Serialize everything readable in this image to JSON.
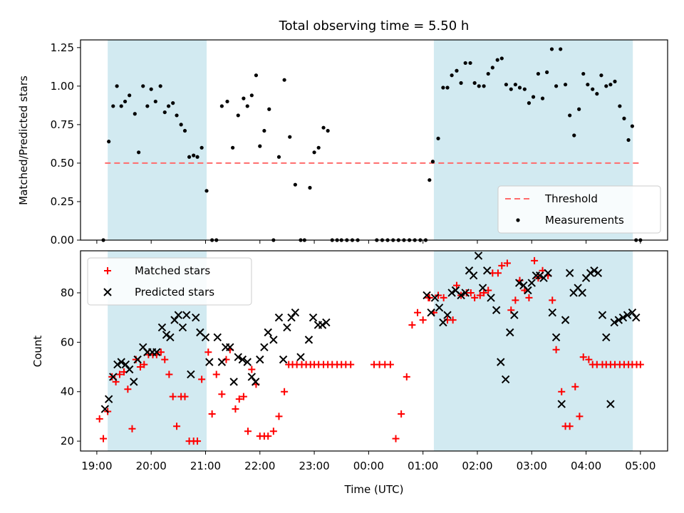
{
  "chart_data": {
    "title": "Total observing time = 5.50 h",
    "xlabel": "Time (UTC)",
    "xlim_hours": [
      -0.3,
      10.5
    ],
    "x_ticks": [
      {
        "v": 0,
        "label": "19:00"
      },
      {
        "v": 1,
        "label": "20:00"
      },
      {
        "v": 2,
        "label": "21:00"
      },
      {
        "v": 3,
        "label": "22:00"
      },
      {
        "v": 4,
        "label": "23:00"
      },
      {
        "v": 5,
        "label": "00:00"
      },
      {
        "v": 6,
        "label": "01:00"
      },
      {
        "v": 7,
        "label": "02:00"
      },
      {
        "v": 8,
        "label": "03:00"
      },
      {
        "v": 9,
        "label": "04:00"
      },
      {
        "v": 10,
        "label": "05:00"
      }
    ],
    "shaded_intervals": [
      [
        0.2,
        2.02
      ],
      [
        6.2,
        9.86
      ]
    ],
    "shade_color": "#add8e6",
    "panels": [
      {
        "type": "scatter",
        "ylabel": "Matched/Predicted stars",
        "ylim": [
          0,
          1.3
        ],
        "yticks": [
          "0.00",
          "0.25",
          "0.50",
          "0.75",
          "1.00",
          "1.25"
        ],
        "threshold": 0.5,
        "legend_placement": "lower-right",
        "series": [
          {
            "name": "Threshold",
            "kind": "line",
            "color": "#ff6b6b",
            "style": "dashed",
            "x": [
              0.15,
              10.0
            ],
            "y": [
              0.5,
              0.5
            ]
          },
          {
            "name": "Measurements",
            "kind": "dot",
            "color": "#000000",
            "x": [
              0.12,
              0.22,
              0.3,
              0.37,
              0.45,
              0.52,
              0.6,
              0.7,
              0.77,
              0.85,
              0.93,
              1.0,
              1.08,
              1.17,
              1.25,
              1.32,
              1.4,
              1.47,
              1.55,
              1.62,
              1.7,
              1.78,
              1.85,
              1.93,
              2.02,
              2.12,
              2.2,
              2.3,
              2.4,
              2.5,
              2.6,
              2.7,
              2.77,
              2.85,
              2.93,
              3.0,
              3.08,
              3.17,
              3.25,
              3.35,
              3.45,
              3.55,
              3.65,
              3.75,
              3.82,
              3.92,
              4.0,
              4.08,
              4.17,
              4.25,
              4.33,
              4.42,
              4.5,
              4.6,
              4.7,
              4.8,
              5.15,
              5.25,
              5.35,
              5.45,
              5.55,
              5.65,
              5.75,
              5.85,
              5.95,
              6.05,
              6.12,
              6.18,
              6.28,
              6.37,
              6.45,
              6.53,
              6.62,
              6.7,
              6.78,
              6.87,
              6.95,
              7.03,
              7.12,
              7.2,
              7.28,
              7.37,
              7.45,
              7.53,
              7.62,
              7.7,
              7.78,
              7.87,
              7.95,
              8.03,
              8.12,
              8.2,
              8.28,
              8.37,
              8.45,
              8.53,
              8.62,
              8.7,
              8.78,
              8.87,
              8.95,
              9.03,
              9.12,
              9.2,
              9.28,
              9.37,
              9.45,
              9.53,
              9.62,
              9.7,
              9.78,
              9.85,
              9.92,
              10.0
            ],
            "y": [
              0.0,
              0.64,
              0.87,
              1.0,
              0.87,
              0.9,
              0.94,
              0.82,
              0.57,
              1.0,
              0.87,
              0.98,
              0.9,
              1.0,
              0.83,
              0.87,
              0.89,
              0.81,
              0.75,
              0.71,
              0.54,
              0.55,
              0.54,
              0.6,
              0.32,
              0.0,
              0.0,
              0.87,
              0.9,
              0.6,
              0.81,
              0.92,
              0.87,
              0.94,
              1.07,
              0.61,
              0.71,
              0.85,
              0.0,
              0.54,
              1.04,
              0.67,
              0.36,
              0.0,
              0.0,
              0.34,
              0.57,
              0.6,
              0.73,
              0.71,
              0.0,
              0.0,
              0.0,
              0.0,
              0.0,
              0.0,
              0.0,
              0.0,
              0.0,
              0.0,
              0.0,
              0.0,
              0.0,
              0.0,
              0.0,
              0.0,
              0.39,
              0.51,
              0.66,
              0.99,
              0.99,
              1.07,
              1.1,
              1.02,
              1.15,
              1.15,
              1.02,
              1.0,
              1.0,
              1.08,
              1.12,
              1.17,
              1.18,
              1.01,
              0.98,
              1.01,
              0.99,
              0.98,
              0.89,
              0.93,
              1.08,
              0.92,
              1.09,
              1.24,
              1.0,
              1.24,
              1.01,
              0.81,
              0.68,
              0.85,
              1.08,
              1.01,
              0.98,
              0.95,
              1.07,
              1.0,
              1.01,
              1.03,
              0.87,
              0.79,
              0.65,
              0.74,
              0.0,
              0.0
            ]
          }
        ]
      },
      {
        "type": "scatter",
        "ylabel": "Count",
        "ylim": [
          16,
          97
        ],
        "yticks": [
          "20",
          "40",
          "60",
          "80"
        ],
        "legend_placement": "upper-left",
        "series": [
          {
            "name": "Matched stars",
            "kind": "plus",
            "color": "#ff0000",
            "x": [
              0.05,
              0.12,
              0.2,
              0.28,
              0.35,
              0.42,
              0.5,
              0.57,
              0.65,
              0.72,
              0.8,
              0.87,
              0.95,
              1.03,
              1.1,
              1.18,
              1.25,
              1.33,
              1.4,
              1.47,
              1.55,
              1.62,
              1.7,
              1.78,
              1.85,
              1.93,
              2.05,
              2.12,
              2.2,
              2.3,
              2.38,
              2.45,
              2.55,
              2.62,
              2.7,
              2.78,
              2.85,
              2.93,
              3.0,
              3.08,
              3.15,
              3.25,
              3.35,
              3.45,
              3.53,
              3.6,
              3.68,
              3.77,
              3.85,
              3.93,
              4.0,
              4.08,
              4.17,
              4.25,
              4.33,
              4.42,
              4.5,
              4.58,
              4.67,
              5.1,
              5.2,
              5.3,
              5.4,
              5.5,
              5.6,
              5.7,
              5.8,
              5.9,
              6.0,
              6.1,
              6.12,
              6.2,
              6.28,
              6.38,
              6.45,
              6.55,
              6.62,
              6.7,
              6.8,
              6.88,
              6.95,
              7.05,
              7.12,
              7.2,
              7.28,
              7.38,
              7.45,
              7.55,
              7.62,
              7.7,
              7.78,
              7.87,
              7.95,
              8.05,
              8.12,
              8.2,
              8.3,
              8.38,
              8.45,
              8.55,
              8.62,
              8.7,
              8.8,
              8.88,
              8.95,
              9.05,
              9.12,
              9.2,
              9.3,
              9.37,
              9.45,
              9.53,
              9.62,
              9.7,
              9.78,
              9.85,
              9.93,
              10.0
            ],
            "y": [
              29,
              21,
              32,
              46,
              44,
              47,
              48,
              41,
              25,
              53,
              50,
              51,
              55,
              55,
              55,
              56,
              53,
              47,
              38,
              26,
              38,
              38,
              20,
              20,
              20,
              45,
              56,
              31,
              47,
              39,
              53,
              57,
              33,
              37,
              38,
              24,
              49,
              43,
              22,
              22,
              22,
              24,
              30,
              40,
              51,
              51,
              51,
              51,
              51,
              51,
              51,
              51,
              51,
              51,
              51,
              51,
              51,
              51,
              51,
              51,
              51,
              51,
              51,
              21,
              31,
              46,
              67,
              72,
              69,
              78,
              78,
              72,
              79,
              78,
              69,
              69,
              83,
              79,
              80,
              80,
              78,
              79,
              80,
              81,
              88,
              88,
              91,
              92,
              73,
              77,
              85,
              81,
              78,
              93,
              86,
              89,
              87,
              77,
              57,
              40,
              26,
              26,
              42,
              30,
              54,
              53,
              51,
              51,
              51,
              51,
              51,
              51,
              51,
              51,
              51,
              51,
              51,
              51
            ]
          },
          {
            "name": "Predicted stars",
            "kind": "x",
            "color": "#000000",
            "x": [
              0.15,
              0.22,
              0.3,
              0.38,
              0.45,
              0.53,
              0.6,
              0.68,
              0.75,
              0.85,
              0.93,
              1.02,
              1.1,
              1.2,
              1.28,
              1.35,
              1.43,
              1.5,
              1.58,
              1.65,
              1.73,
              1.82,
              1.9,
              2.0,
              2.07,
              2.22,
              2.3,
              2.37,
              2.45,
              2.52,
              2.6,
              2.68,
              2.77,
              2.85,
              2.92,
              3.0,
              3.08,
              3.15,
              3.25,
              3.35,
              3.43,
              3.5,
              3.58,
              3.65,
              3.75,
              3.9,
              3.98,
              4.07,
              4.15,
              4.22,
              6.07,
              6.15,
              6.22,
              6.3,
              6.37,
              6.45,
              6.53,
              6.6,
              6.7,
              6.78,
              6.85,
              6.93,
              7.02,
              7.1,
              7.18,
              7.25,
              7.35,
              7.43,
              7.52,
              7.6,
              7.68,
              7.77,
              7.85,
              7.93,
              8.0,
              8.08,
              8.15,
              8.22,
              8.3,
              8.38,
              8.45,
              8.55,
              8.62,
              8.7,
              8.77,
              8.85,
              8.93,
              9.0,
              9.08,
              9.15,
              9.22,
              9.3,
              9.37,
              9.45,
              9.52,
              9.6,
              9.68,
              9.76,
              9.85,
              9.92
            ],
            "y": [
              33,
              37,
              46,
              51,
              52,
              51,
              49,
              44,
              53,
              58,
              56,
              56,
              56,
              66,
              63,
              62,
              69,
              71,
              66,
              71,
              47,
              70,
              64,
              62,
              52,
              62,
              52,
              58,
              58,
              44,
              54,
              53,
              52,
              46,
              44,
              53,
              58,
              64,
              61,
              70,
              53,
              66,
              70,
              72,
              54,
              61,
              70,
              67,
              67,
              68,
              79,
              72,
              78,
              74,
              68,
              71,
              80,
              81,
              79,
              80,
              89,
              87,
              95,
              82,
              89,
              78,
              73,
              52,
              45,
              64,
              71,
              84,
              83,
              81,
              84,
              87,
              87,
              86,
              88,
              72,
              62,
              35,
              69,
              88,
              80,
              82,
              80,
              86,
              88,
              89,
              88,
              71,
              62,
              35,
              68,
              69,
              70,
              71,
              72,
              70
            ]
          }
        ]
      }
    ]
  }
}
